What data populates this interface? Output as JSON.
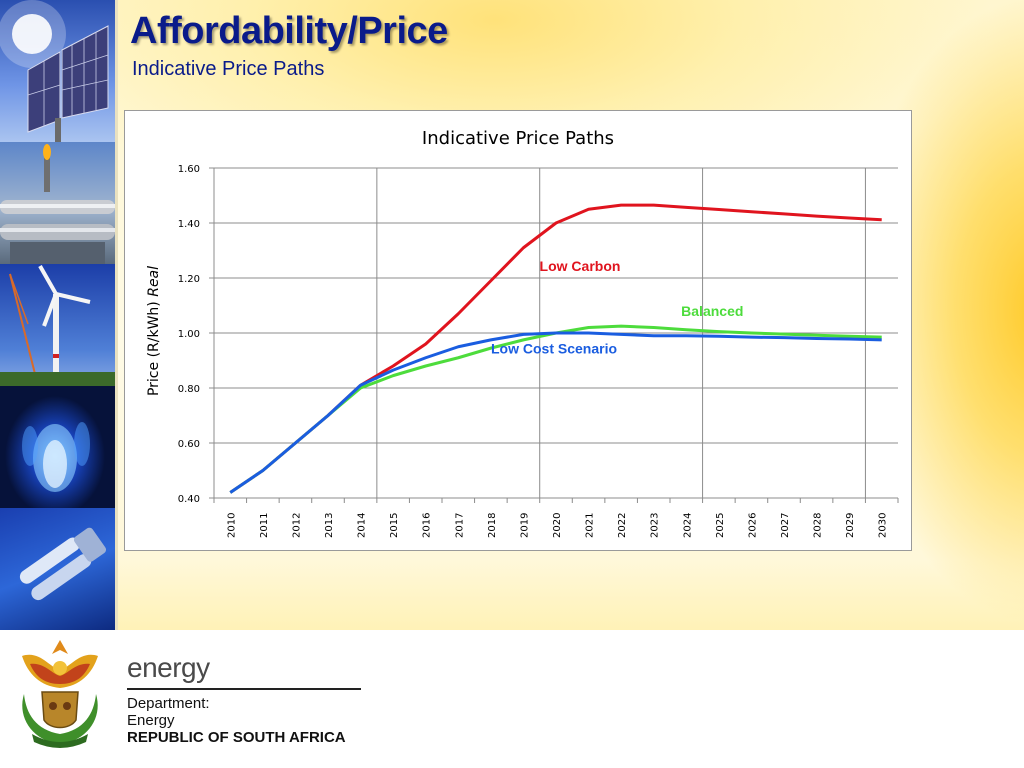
{
  "slide": {
    "title": "Affordability/Price",
    "subtitle": "Indicative Price Paths"
  },
  "footer": {
    "brand": "energy",
    "department_line1": "Department:",
    "department_line2": "Energy",
    "country": "REPUBLIC OF SOUTH AFRICA"
  },
  "chart_data": {
    "type": "line",
    "title": "Indicative Price Paths",
    "ylabel_main": "Price (R/kWh) ",
    "ylabel_italic": "Real",
    "xlabel": "",
    "x": [
      2010,
      2011,
      2012,
      2013,
      2014,
      2015,
      2016,
      2017,
      2018,
      2019,
      2020,
      2021,
      2022,
      2023,
      2024,
      2025,
      2026,
      2027,
      2028,
      2029,
      2030
    ],
    "x_tick_labels": [
      "2010",
      "2011",
      "2012",
      "2013",
      "2014",
      "2015",
      "2016",
      "2017",
      "2018",
      "2019",
      "2020",
      "2021",
      "2022",
      "2023",
      "2024",
      "2025",
      "2026",
      "2027",
      "2028",
      "2029",
      "2030"
    ],
    "ylim": [
      0.4,
      1.6
    ],
    "y_ticks": [
      0.4,
      0.6,
      0.8,
      1.0,
      1.2,
      1.4,
      1.6
    ],
    "y_tick_labels": [
      "0.40",
      "0.60",
      "0.80",
      "1.00",
      "1.20",
      "1.40",
      "1.60"
    ],
    "grid": true,
    "series": [
      {
        "name": "Low Carbon",
        "color": "#e0141e",
        "values": [
          0.42,
          0.5,
          0.6,
          0.7,
          0.81,
          0.88,
          0.96,
          1.07,
          1.19,
          1.31,
          1.4,
          1.45,
          1.465,
          1.465,
          1.457,
          1.449,
          1.441,
          1.433,
          1.425,
          1.418,
          1.412
        ]
      },
      {
        "name": "Balanced",
        "color": "#4ddc3c",
        "values": [
          0.42,
          0.5,
          0.6,
          0.7,
          0.8,
          0.845,
          0.88,
          0.91,
          0.945,
          0.975,
          1.0,
          1.02,
          1.025,
          1.02,
          1.012,
          1.005,
          1.0,
          0.996,
          0.992,
          0.988,
          0.985
        ]
      },
      {
        "name": "Low Cost Scenario",
        "color": "#1a5de0",
        "values": [
          0.42,
          0.5,
          0.6,
          0.7,
          0.81,
          0.865,
          0.91,
          0.95,
          0.975,
          0.995,
          1.0,
          1.0,
          0.995,
          0.99,
          0.99,
          0.988,
          0.985,
          0.983,
          0.98,
          0.978,
          0.975
        ]
      }
    ]
  }
}
